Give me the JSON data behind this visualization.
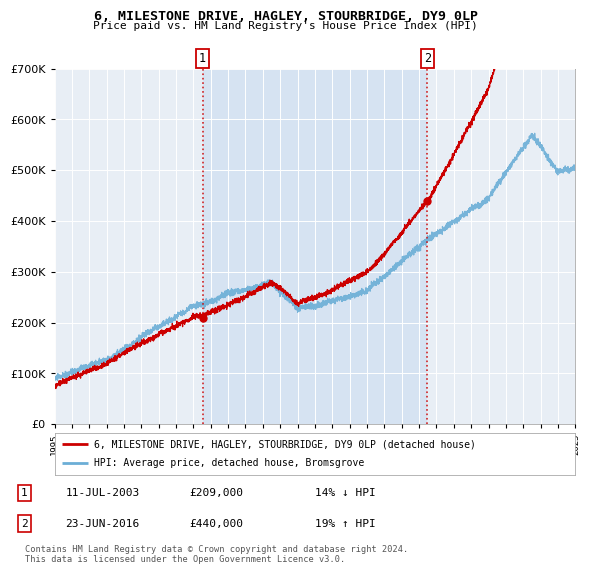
{
  "title_line1": "6, MILESTONE DRIVE, HAGLEY, STOURBRIDGE, DY9 0LP",
  "title_line2": "Price paid vs. HM Land Registry's House Price Index (HPI)",
  "legend_label1": "6, MILESTONE DRIVE, HAGLEY, STOURBRIDGE, DY9 0LP (detached house)",
  "legend_label2": "HPI: Average price, detached house, Bromsgrove",
  "transaction1_date": "11-JUL-2003",
  "transaction1_price": "£209,000",
  "transaction1_hpi": "14% ↓ HPI",
  "transaction1_year": 2003.53,
  "transaction1_value": 209000,
  "transaction2_date": "23-JUN-2016",
  "transaction2_price": "£440,000",
  "transaction2_hpi": "19% ↑ HPI",
  "transaction2_year": 2016.47,
  "transaction2_value": 440000,
  "footer": "Contains HM Land Registry data © Crown copyright and database right 2024.\nThis data is licensed under the Open Government Licence v3.0.",
  "hpi_color": "#6baed6",
  "sale_color": "#cc0000",
  "highlight_color": "#ddeeff",
  "plot_bg": "#e8eef5",
  "ylim": [
    0,
    700000
  ],
  "xlim_start": 1995,
  "xlim_end": 2025,
  "hpi_seed": 10,
  "sale_seed": 99
}
